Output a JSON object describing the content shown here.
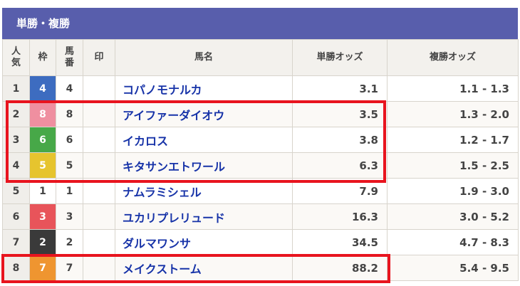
{
  "title": "単勝・複勝",
  "headers": {
    "popularity": "人\n気",
    "waku": "枠",
    "umaban": "馬\n番",
    "mark": "印",
    "name": "馬名",
    "win": "単勝オッズ",
    "place": "複勝オッズ"
  },
  "waku_colors": {
    "1": "#ffffff",
    "2": "#3a3a3a",
    "3": "#e8545a",
    "4": "#3d6cc0",
    "5": "#e6c42e",
    "6": "#47a848",
    "7": "#ef9530",
    "8": "#ef8fa0"
  },
  "highlight_color": "#e8141e",
  "rows": [
    {
      "pop": "1",
      "waku": "4",
      "umaban": "4",
      "mark": "",
      "name": "コパノモナルカ",
      "win": "3.1",
      "place": "1.1 - 1.3"
    },
    {
      "pop": "2",
      "waku": "8",
      "umaban": "8",
      "mark": "",
      "name": "アイファーダイオウ",
      "win": "3.5",
      "place": "1.3 - 2.0"
    },
    {
      "pop": "3",
      "waku": "6",
      "umaban": "6",
      "mark": "",
      "name": "イカロス",
      "win": "3.8",
      "place": "1.2 - 1.7"
    },
    {
      "pop": "4",
      "waku": "5",
      "umaban": "5",
      "mark": "",
      "name": "キタサンエトワール",
      "win": "6.3",
      "place": "1.5 - 2.5"
    },
    {
      "pop": "5",
      "waku": "1",
      "umaban": "1",
      "mark": "",
      "name": "ナムラミシェル",
      "win": "7.9",
      "place": "1.9 - 3.0"
    },
    {
      "pop": "6",
      "waku": "3",
      "umaban": "3",
      "mark": "",
      "name": "ユカリプレリュード",
      "win": "16.3",
      "place": "3.0 - 5.2"
    },
    {
      "pop": "7",
      "waku": "2",
      "umaban": "2",
      "mark": "",
      "name": "ダルマワンサ",
      "win": "34.5",
      "place": "4.7 - 8.3"
    },
    {
      "pop": "8",
      "waku": "7",
      "umaban": "7",
      "mark": "",
      "name": "メイクストーム",
      "win": "88.2",
      "place": "5.4 - 9.5"
    }
  ]
}
